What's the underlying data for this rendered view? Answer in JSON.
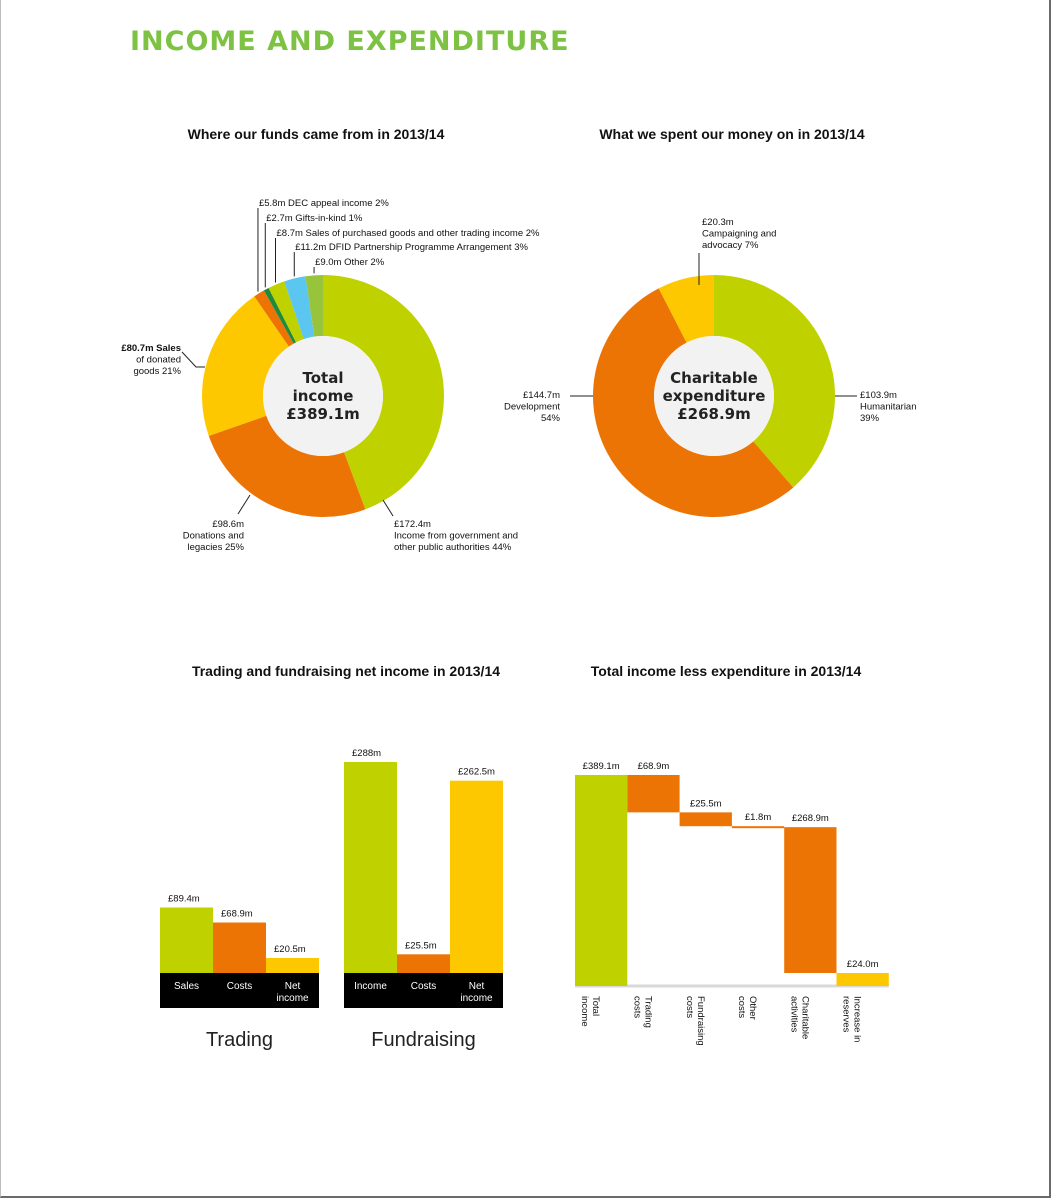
{
  "page": {
    "title": "INCOME AND EXPENDITURE"
  },
  "colors": {
    "green": "#bfd200",
    "orange": "#ec7405",
    "yellow": "#fec800",
    "darkgreen": "#1e8a3c",
    "lightgreen": "#98c43c",
    "blue": "#5bc6ef",
    "black": "#000000",
    "title_green": "#7dc242"
  },
  "chart_data": [
    {
      "type": "pie",
      "title": "Where our funds came from in 2013/14",
      "center_label": [
        "Total",
        "income",
        "£389.1m"
      ],
      "slices": [
        {
          "name": "Income from government and other public authorities",
          "value": 172.4,
          "percent": 44,
          "color": "green",
          "label": [
            "£172.4m",
            "Income from government and",
            "other public authorities 44%"
          ]
        },
        {
          "name": "Donations and legacies",
          "value": 98.6,
          "percent": 25,
          "color": "orange",
          "label": [
            "£98.6m",
            "Donations and",
            "legacies 25%"
          ]
        },
        {
          "name": "Sales of donated goods",
          "value": 80.7,
          "percent": 21,
          "color": "yellow",
          "label": [
            "£80.7m Sales",
            "of donated",
            "goods 21%"
          ]
        },
        {
          "name": "DEC appeal income",
          "value": 5.8,
          "percent": 2,
          "color": "orange",
          "label": [
            "£5.8m DEC appeal income 2%"
          ]
        },
        {
          "name": "Gifts-in-kind",
          "value": 2.7,
          "percent": 1,
          "color": "darkgreen",
          "label": [
            "£2.7m Gifts-in-kind 1%"
          ]
        },
        {
          "name": "Sales of purchased goods and other trading income",
          "value": 8.7,
          "percent": 2,
          "color": "green",
          "label": [
            "£8.7m Sales of purchased goods and other trading income 2%"
          ]
        },
        {
          "name": "DFID Partnership Programme Arrangement",
          "value": 11.2,
          "percent": 3,
          "color": "blue",
          "label": [
            "£11.2m DFID Partnership Programme Arrangement 3%"
          ]
        },
        {
          "name": "Other",
          "value": 9.0,
          "percent": 2,
          "color": "lightgreen",
          "label": [
            "£9.0m Other 2%"
          ]
        }
      ]
    },
    {
      "type": "pie",
      "title": "What we spent our money on in 2013/14",
      "center_label": [
        "Charitable",
        "expenditure",
        "£268.9m"
      ],
      "slices": [
        {
          "name": "Humanitarian",
          "value": 103.9,
          "percent": 39,
          "color": "green",
          "label": [
            "£103.9m",
            "Humanitarian",
            "39%"
          ]
        },
        {
          "name": "Development",
          "value": 144.7,
          "percent": 54,
          "color": "orange",
          "label": [
            "£144.7m",
            "Development",
            "54%"
          ]
        },
        {
          "name": "Campaigning and advocacy",
          "value": 20.3,
          "percent": 7,
          "color": "yellow",
          "label": [
            "£20.3m",
            "Campaigning and",
            "advocacy 7%"
          ]
        }
      ]
    },
    {
      "type": "bar",
      "title": "Trading and fundraising net income in 2013/14",
      "ylim": [
        0,
        288
      ],
      "groups": [
        {
          "name": "Trading",
          "categories": [
            "Sales",
            "Costs",
            "Net income"
          ],
          "values": [
            89.4,
            68.9,
            20.5
          ],
          "labels": [
            "£89.4m",
            "£68.9m",
            "£20.5m"
          ],
          "colors": [
            "green",
            "orange",
            "yellow"
          ]
        },
        {
          "name": "Fundraising",
          "categories": [
            "Income",
            "Costs",
            "Net income"
          ],
          "values": [
            288,
            25.5,
            262.5
          ],
          "labels": [
            "£288m",
            "£25.5m",
            "£262.5m"
          ],
          "colors": [
            "green",
            "orange",
            "yellow"
          ]
        }
      ]
    },
    {
      "type": "bar",
      "subtype": "waterfall",
      "title": "Total income less expenditure in 2013/14",
      "ylim": [
        0,
        389.1
      ],
      "categories": [
        "Total income",
        "Trading costs",
        "Fundraising costs",
        "Other costs",
        "Charitable activities",
        "Increase in reserves"
      ],
      "values": [
        389.1,
        68.9,
        25.5,
        1.8,
        268.9,
        24.0
      ],
      "labels": [
        "£389.1m",
        "£68.9m",
        "£25.5m",
        "£1.8m",
        "£268.9m",
        "£24.0m"
      ],
      "kinds": [
        "total",
        "decrease",
        "decrease",
        "decrease",
        "decrease",
        "result"
      ],
      "colors": [
        "green",
        "orange",
        "orange",
        "orange",
        "orange",
        "yellow"
      ]
    }
  ]
}
